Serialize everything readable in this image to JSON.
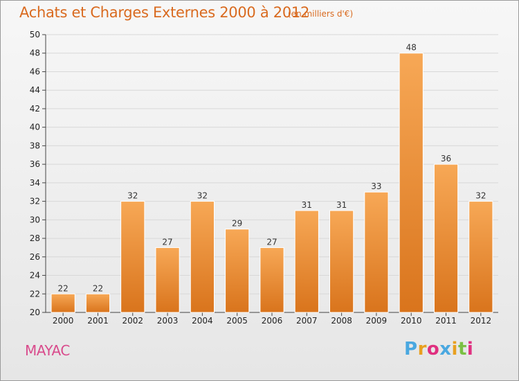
{
  "header": {
    "title": "Achats et Charges Externes 2000 à 2012",
    "subtitle": "(en milliers d'€)"
  },
  "footer": {
    "commune": "MAYAC",
    "brand": "Proxiti",
    "brand_colors": [
      "#4aa8e0",
      "#e8a020",
      "#e03080",
      "#4aa8e0",
      "#e8a020",
      "#7ac043",
      "#e03080"
    ]
  },
  "colors": {
    "bar_top": "#f7a856",
    "bar_bottom": "#d9741c",
    "title": "#d96a1f",
    "commune": "#d94b8c",
    "grid": "#d8d8d8",
    "axis": "#444444"
  },
  "chart_data": {
    "type": "bar",
    "title": "Achats et Charges Externes 2000 à 2012",
    "subtitle": "(en milliers d'€)",
    "xlabel": "",
    "ylabel": "",
    "ylim": [
      20,
      50
    ],
    "ytick_step": 2,
    "grid": true,
    "categories": [
      "2000",
      "2001",
      "2002",
      "2003",
      "2004",
      "2005",
      "2006",
      "2007",
      "2008",
      "2009",
      "2010",
      "2011",
      "2012"
    ],
    "values": [
      22,
      22,
      32,
      27,
      32,
      29,
      27,
      31,
      31,
      33,
      48,
      36,
      32
    ]
  }
}
